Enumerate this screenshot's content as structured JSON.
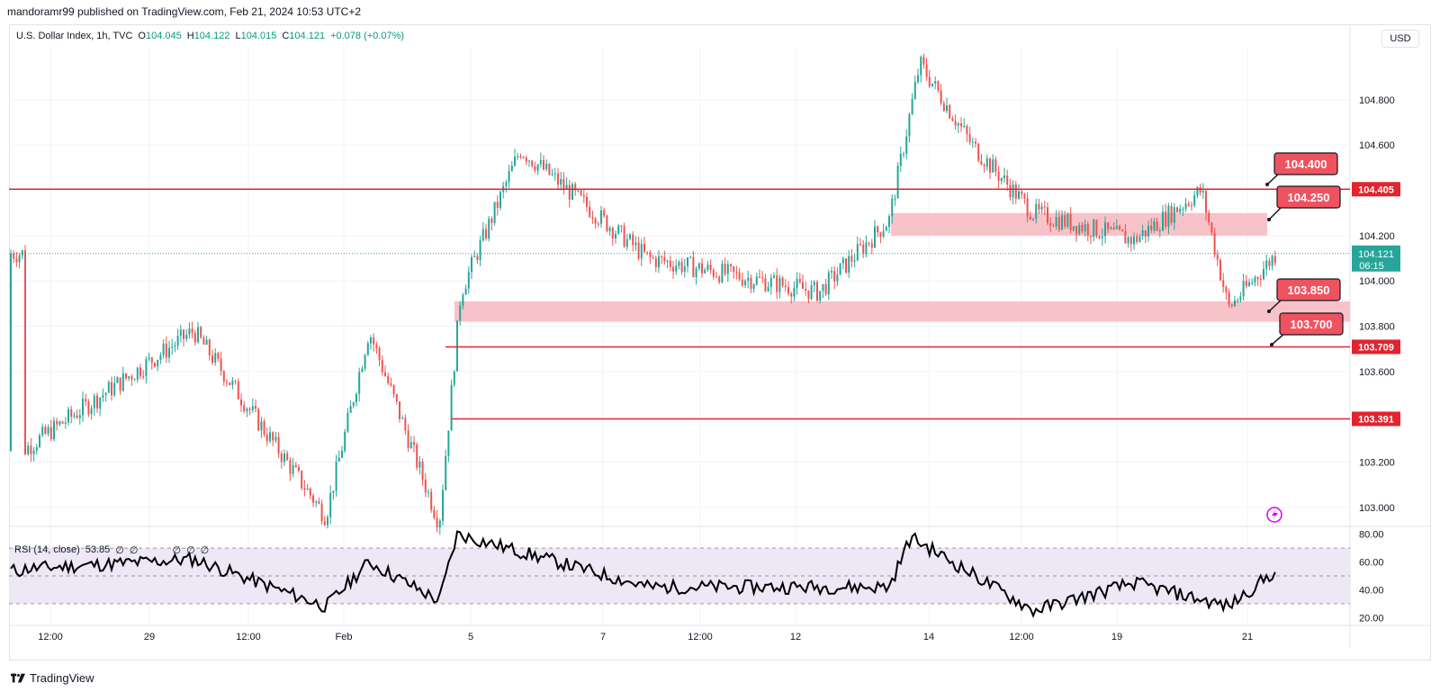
{
  "header": {
    "publisher": "mandoramr99 published on TradingView.com, Feb 21, 2024 10:53 UTC+2"
  },
  "legend": {
    "symbol": "U.S. Dollar Index, 1h, TVC",
    "open_label": "O",
    "open": "104.045",
    "high_label": "H",
    "high": "104.122",
    "low_label": "L",
    "low": "104.015",
    "close_label": "C",
    "close": "104.121",
    "change": "+0.078 (+0.07%)"
  },
  "currency": "USD",
  "rsi": {
    "label": "RSI (14, close)",
    "value": "53.85",
    "markers": [
      "∅",
      "∅",
      "∅",
      "∅",
      "∅"
    ]
  },
  "footer": {
    "brand": "TradingView"
  },
  "colors": {
    "up": "#26a69a",
    "down": "#ef5350",
    "line": "#e1242f",
    "zone": "#f8bfc6",
    "rsi_band": "#ede7f6"
  },
  "chart_data": [
    {
      "type": "candlestick",
      "symbol": "U.S. Dollar Index",
      "timeframe": "1h",
      "x_ticks": [
        "12:00",
        "29",
        "12:00",
        "Feb",
        "5",
        "7",
        "12:00",
        "12",
        "14",
        "12:00",
        "19",
        "21"
      ],
      "y_ticks": [
        "104.800",
        "104.600",
        "104.200",
        "104.000",
        "103.800",
        "103.600",
        "103.200",
        "103.000"
      ],
      "ylim": [
        102.92,
        105.03
      ],
      "grid": true,
      "last_price": {
        "value": "104.121",
        "countdown": "06:15"
      },
      "horizontal_lines": [
        {
          "value": 104.405,
          "label": "104.405"
        },
        {
          "value": 103.709,
          "label": "103.709"
        },
        {
          "value": 103.391,
          "label": "103.391"
        }
      ],
      "zones": [
        {
          "from": 104.2,
          "to": 104.3
        },
        {
          "from": 103.82,
          "to": 103.91
        }
      ],
      "callouts": [
        "104.400",
        "104.250",
        "103.850",
        "103.700"
      ],
      "key_points": [
        {
          "x": "Jan 28 12:00",
          "y": 103.25
        },
        {
          "x": "Jan 30",
          "y": 103.78
        },
        {
          "x": "Feb 1",
          "y": 102.96
        },
        {
          "x": "Feb 2",
          "y": 103.78
        },
        {
          "x": "Feb 4",
          "y": 102.93
        },
        {
          "x": "Feb 5",
          "y": 103.95
        },
        {
          "x": "Feb 6",
          "y": 104.58
        },
        {
          "x": "Feb 8",
          "y": 104.1
        },
        {
          "x": "Feb 12",
          "y": 103.95
        },
        {
          "x": "Feb 13",
          "y": 104.27
        },
        {
          "x": "Feb 14",
          "y": 104.96
        },
        {
          "x": "Feb 15",
          "y": 104.6
        },
        {
          "x": "Feb 16",
          "y": 104.3
        },
        {
          "x": "Feb 19",
          "y": 104.18
        },
        {
          "x": "Feb 20",
          "y": 104.4
        },
        {
          "x": "Feb 20 12:00",
          "y": 103.88
        },
        {
          "x": "Feb 21",
          "y": 104.121
        }
      ]
    },
    {
      "type": "line",
      "name": "RSI (14, close)",
      "y_ticks": [
        "80.00",
        "60.00",
        "40.00",
        "20.00"
      ],
      "ylim": [
        15,
        85
      ],
      "levels": [
        70,
        50,
        30
      ],
      "key_points": [
        {
          "x": "Jan 28 12:00",
          "y": 55
        },
        {
          "x": "Jan 30",
          "y": 62
        },
        {
          "x": "Feb 1",
          "y": 28
        },
        {
          "x": "Feb 2",
          "y": 60
        },
        {
          "x": "Feb 4",
          "y": 32
        },
        {
          "x": "Feb 5",
          "y": 80
        },
        {
          "x": "Feb 8",
          "y": 42
        },
        {
          "x": "Feb 13",
          "y": 42
        },
        {
          "x": "Feb 14",
          "y": 78
        },
        {
          "x": "Feb 16",
          "y": 25
        },
        {
          "x": "Feb 19",
          "y": 45
        },
        {
          "x": "Feb 20 12:00",
          "y": 28
        },
        {
          "x": "Feb 21",
          "y": 53.85
        }
      ]
    }
  ]
}
